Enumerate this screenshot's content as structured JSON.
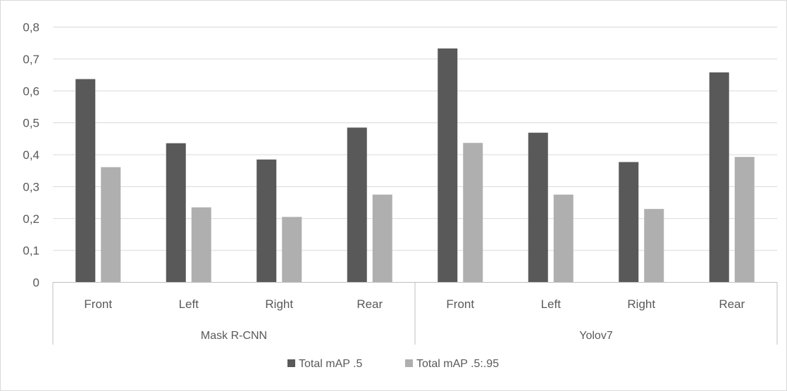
{
  "chart_data": {
    "type": "bar",
    "groups": [
      {
        "label": "Mask R-CNN",
        "categories": [
          "Front",
          "Left",
          "Right",
          "Rear"
        ]
      },
      {
        "label": "Yolov7",
        "categories": [
          "Front",
          "Left",
          "Right",
          "Rear"
        ]
      }
    ],
    "series": [
      {
        "name": "Total mAP .5",
        "color": "#595959",
        "values": [
          0.637,
          0.436,
          0.385,
          0.485,
          0.733,
          0.469,
          0.377,
          0.658
        ]
      },
      {
        "name": "Total mAP .5:.95",
        "color": "#afafaf",
        "values": [
          0.361,
          0.235,
          0.205,
          0.275,
          0.437,
          0.275,
          0.23,
          0.393
        ]
      }
    ],
    "y_ticks": [
      "0",
      "0,1",
      "0,2",
      "0,3",
      "0,4",
      "0,5",
      "0,6",
      "0,7",
      "0,8"
    ],
    "ylim": [
      0,
      0.8
    ],
    "grid": true,
    "legend": "bottom",
    "title": "",
    "xlabel": "",
    "ylabel": ""
  }
}
